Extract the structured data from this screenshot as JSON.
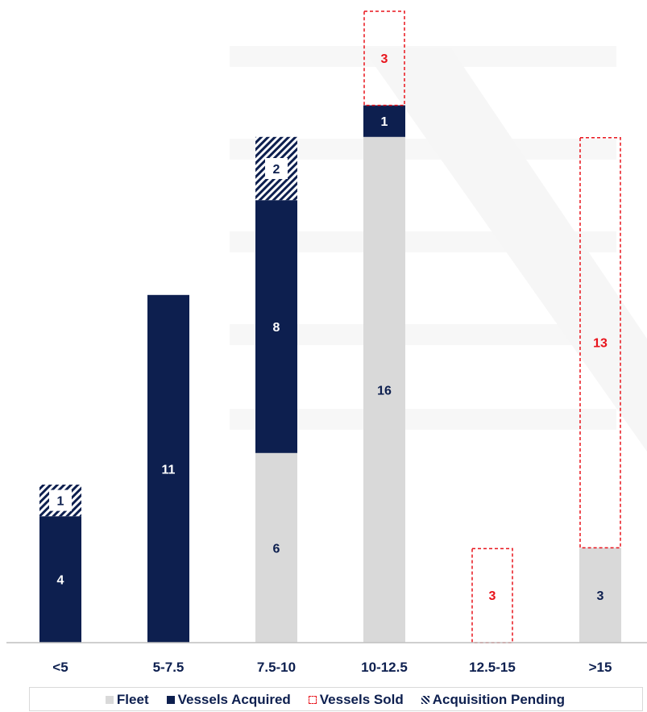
{
  "chart_data": {
    "type": "bar",
    "stacked": true,
    "categories": [
      "<5",
      "5-7.5",
      "7.5-10",
      "10-12.5",
      "12.5-15",
      ">15"
    ],
    "series": [
      {
        "name": "Fleet",
        "values": [
          0,
          0,
          6,
          16,
          0,
          3
        ],
        "color": "#d9d9d9"
      },
      {
        "name": "Vessels Acquired",
        "values": [
          4,
          11,
          8,
          1,
          0,
          0
        ],
        "color": "#0d1f4f"
      },
      {
        "name": "Vessels Sold",
        "values": [
          0,
          0,
          0,
          3,
          3,
          13
        ],
        "color": "#e8141c"
      },
      {
        "name": "Acquisition Pending",
        "values": [
          1,
          0,
          2,
          0,
          0,
          0
        ],
        "color": "#0d1f4f"
      }
    ],
    "ylim": [
      0,
      20
    ],
    "grid": false,
    "legend_position": "bottom"
  },
  "legend": [
    {
      "label": "Fleet",
      "swatch": "solid-gray"
    },
    {
      "label": "Vessels Acquired",
      "swatch": "solid-navy"
    },
    {
      "label": "Vessels Sold",
      "swatch": "dashed-red"
    },
    {
      "label": "Acquisition Pending",
      "swatch": "hatched-navy"
    }
  ]
}
